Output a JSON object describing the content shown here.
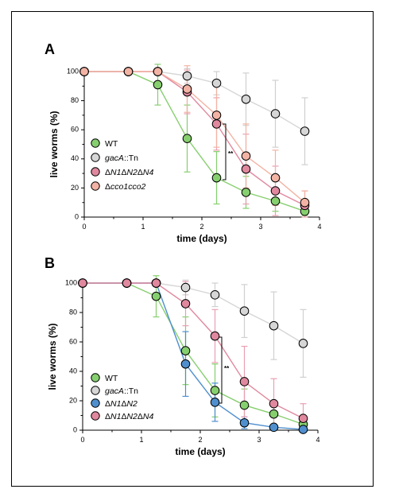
{
  "chart_data": [
    {
      "panel": "A",
      "type": "line",
      "xlabel": "time (days)",
      "ylabel": "live worms (%)",
      "xlim": [
        0,
        4
      ],
      "ylim": [
        0,
        100
      ],
      "xticks": [
        "0",
        "1",
        "2",
        "3",
        "4"
      ],
      "yticks": [
        "0",
        "20",
        "40",
        "60",
        "80",
        "100"
      ],
      "legend_position": "lower-left",
      "significance": "**",
      "series": [
        {
          "name": "WT",
          "color": "#86cf6f",
          "error_color": "#86cf6f",
          "x": [
            0,
            0.75,
            1.25,
            1.75,
            2.25,
            2.75,
            3.25,
            3.75
          ],
          "y": [
            100,
            100,
            91,
            54,
            27,
            17,
            11,
            4
          ],
          "err": [
            0,
            0,
            14,
            23,
            18,
            11,
            7,
            3
          ]
        },
        {
          "name": "gacA::Tn",
          "color": "#d6d6d6",
          "error_color": "#d0d0d0",
          "x": [
            0,
            0.75,
            1.25,
            1.75,
            2.25,
            2.75,
            3.25,
            3.75
          ],
          "y": [
            100,
            100,
            100,
            97,
            92,
            81,
            71,
            59
          ],
          "err": [
            0,
            0,
            0,
            5,
            8,
            18,
            23,
            23
          ]
        },
        {
          "name": "ΔN1ΔN2ΔN4",
          "color": "#e0889e",
          "error_color": "#e8a0b2",
          "x": [
            0,
            0.75,
            1.25,
            1.75,
            2.25,
            2.75,
            3.25,
            3.75
          ],
          "y": [
            100,
            100,
            100,
            86,
            64,
            33,
            18,
            8
          ],
          "err": [
            0,
            0,
            0,
            15,
            18,
            24,
            17,
            10
          ]
        },
        {
          "name": "Δcco1cco2",
          "color": "#f3b3a4",
          "error_color": "#f3b3a4",
          "x": [
            0,
            0.75,
            1.25,
            1.75,
            2.25,
            2.75,
            3.25,
            3.75
          ],
          "y": [
            100,
            100,
            100,
            88,
            70,
            42,
            27,
            10
          ],
          "err": [
            0,
            0,
            0,
            16,
            22,
            22,
            19,
            8
          ]
        }
      ]
    },
    {
      "panel": "B",
      "type": "line",
      "xlabel": "time (days)",
      "ylabel": "live worms (%)",
      "xlim": [
        0,
        4
      ],
      "ylim": [
        0,
        100
      ],
      "xticks": [
        "0",
        "1",
        "2",
        "3",
        "4"
      ],
      "yticks": [
        "0",
        "20",
        "40",
        "60",
        "80",
        "100"
      ],
      "legend_position": "lower-left",
      "significance": "**",
      "series": [
        {
          "name": "WT",
          "color": "#86cf6f",
          "error_color": "#86cf6f",
          "x": [
            0,
            0.75,
            1.25,
            1.75,
            2.25,
            2.75,
            3.25,
            3.75
          ],
          "y": [
            100,
            100,
            91,
            54,
            27,
            17,
            11,
            4
          ],
          "err": [
            0,
            0,
            14,
            23,
            18,
            11,
            7,
            3
          ]
        },
        {
          "name": "gacA::Tn",
          "color": "#d6d6d6",
          "error_color": "#d0d0d0",
          "x": [
            0,
            0.75,
            1.25,
            1.75,
            2.25,
            2.75,
            3.25,
            3.75
          ],
          "y": [
            100,
            100,
            100,
            97,
            92,
            81,
            71,
            59
          ],
          "err": [
            0,
            0,
            0,
            5,
            8,
            18,
            23,
            23
          ]
        },
        {
          "name": "ΔN1ΔN2",
          "color": "#4f8fce",
          "error_color": "#4f8fce",
          "x": [
            0,
            0.75,
            1.25,
            1.75,
            2.25,
            2.75,
            3.25,
            3.75
          ],
          "y": [
            100,
            100,
            100,
            45,
            19,
            5,
            2,
            0.5
          ],
          "err": [
            0,
            0,
            0,
            22,
            13,
            4,
            2,
            1
          ]
        },
        {
          "name": "ΔN1ΔN2ΔN4",
          "color": "#e0889e",
          "error_color": "#e8a0b2",
          "x": [
            0,
            0.75,
            1.25,
            1.75,
            2.25,
            2.75,
            3.25,
            3.75
          ],
          "y": [
            100,
            100,
            100,
            86,
            64,
            33,
            18,
            8
          ],
          "err": [
            0,
            0,
            0,
            15,
            18,
            24,
            17,
            10
          ]
        }
      ]
    }
  ]
}
